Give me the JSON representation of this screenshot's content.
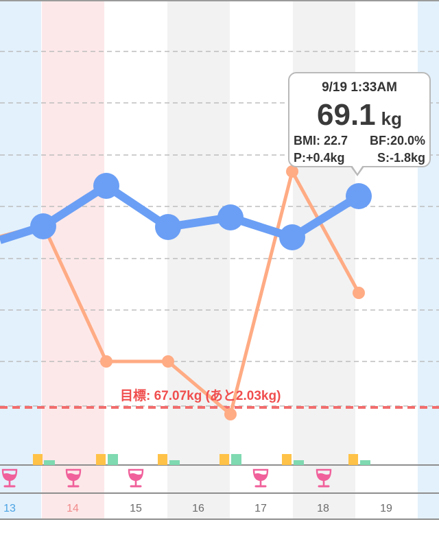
{
  "tooltip": {
    "time": "9/19 1:33AM",
    "weight": "69.1",
    "unit": "kg",
    "bmi": "BMI: 22.7",
    "bf": "BF:20.0%",
    "p": "P:+0.4kg",
    "s": "S:-1.8kg"
  },
  "goal": {
    "label": "目標: 67.07kg (あと2.03kg)"
  },
  "days": [
    {
      "label": "13",
      "style": "blue"
    },
    {
      "label": "14",
      "style": "red"
    },
    {
      "label": "15",
      "style": "normal"
    },
    {
      "label": "16",
      "style": "normal"
    },
    {
      "label": "17",
      "style": "normal"
    },
    {
      "label": "18",
      "style": "normal"
    },
    {
      "label": "19",
      "style": "normal"
    }
  ],
  "colors": {
    "weight_line": "#6b9ff5",
    "fat_line": "#ffab84",
    "goal_line": "#f26d6d",
    "sunday_bg": "#e3f1fc",
    "holiday_bg": "#fde8e9",
    "alt_bg": "#f2f2f2",
    "marker_yellow": "#ffc248",
    "marker_green": "#7fd9b1",
    "drink_icon": "#f0609a"
  },
  "icons": {
    "drink": "wine-glass-icon"
  }
}
